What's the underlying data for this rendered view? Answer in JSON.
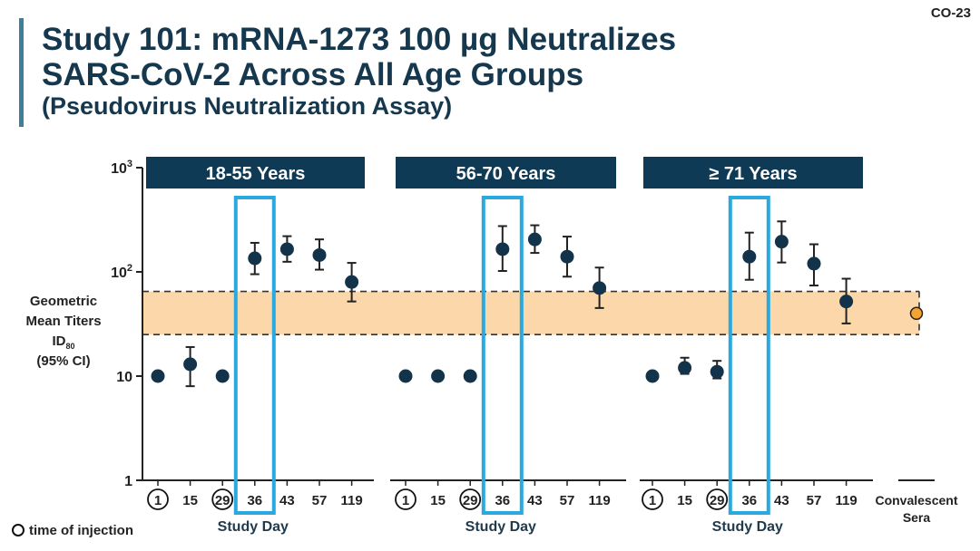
{
  "slide_number": "CO-23",
  "title_line1": "Study 101: mRNA-1273 100 µg Neutralizes",
  "title_line2": "SARS-CoV-2 Across All Age Groups",
  "subtitle": "(Pseudovirus Neutralization Assay)",
  "legend_note": "time of injection",
  "colors": {
    "point": "#12334a",
    "panel_header": "#0e3a55",
    "highlight_box": "#29a9e0",
    "band_fill": "#fbd7a9",
    "convalescent_point": "#f5a433",
    "title": "#16384f"
  },
  "chart_data": {
    "type": "scatter",
    "y_scale": "log",
    "ylim": [
      1,
      1000
    ],
    "ylabel_lines": [
      "Geometric",
      "Mean Titers",
      "ID",
      "(95% CI)"
    ],
    "ylabel_subscript": "80",
    "y_ticks": [
      {
        "value": 1,
        "label": "1"
      },
      {
        "value": 10,
        "label": "10"
      },
      {
        "value": 100,
        "base": "10",
        "exp": "2"
      },
      {
        "value": 1000,
        "base": "10",
        "exp": "3"
      }
    ],
    "xlabel": "Study Day",
    "injection_days": [
      "1",
      "29"
    ],
    "highlight_day": "36",
    "reference_band": {
      "lower": 25,
      "upper": 65
    },
    "panels": [
      {
        "name": "18-55 Years",
        "days": [
          "1",
          "15",
          "29",
          "36",
          "43",
          "57",
          "119"
        ],
        "points": [
          {
            "day": "1",
            "y": 10
          },
          {
            "day": "15",
            "y": 13,
            "lo": 8,
            "hi": 19
          },
          {
            "day": "29",
            "y": 10
          },
          {
            "day": "36",
            "y": 135,
            "lo": 95,
            "hi": 190
          },
          {
            "day": "43",
            "y": 165,
            "lo": 125,
            "hi": 220
          },
          {
            "day": "57",
            "y": 145,
            "lo": 105,
            "hi": 205
          },
          {
            "day": "119",
            "y": 80,
            "lo": 52,
            "hi": 122
          }
        ]
      },
      {
        "name": "56-70 Years",
        "days": [
          "1",
          "15",
          "29",
          "36",
          "43",
          "57",
          "119"
        ],
        "points": [
          {
            "day": "1",
            "y": 10
          },
          {
            "day": "15",
            "y": 10
          },
          {
            "day": "29",
            "y": 10
          },
          {
            "day": "36",
            "y": 165,
            "lo": 102,
            "hi": 275
          },
          {
            "day": "43",
            "y": 205,
            "lo": 152,
            "hi": 280
          },
          {
            "day": "57",
            "y": 140,
            "lo": 90,
            "hi": 218
          },
          {
            "day": "119",
            "y": 70,
            "lo": 45,
            "hi": 110
          }
        ]
      },
      {
        "name": "≥ 71 Years",
        "days": [
          "1",
          "15",
          "29",
          "36",
          "43",
          "57",
          "119"
        ],
        "points": [
          {
            "day": "1",
            "y": 10
          },
          {
            "day": "15",
            "y": 12,
            "lo": 10.5,
            "hi": 15
          },
          {
            "day": "29",
            "y": 11,
            "lo": 9.5,
            "hi": 14
          },
          {
            "day": "36",
            "y": 140,
            "lo": 84,
            "hi": 238
          },
          {
            "day": "43",
            "y": 195,
            "lo": 123,
            "hi": 305
          },
          {
            "day": "57",
            "y": 120,
            "lo": 74,
            "hi": 184
          },
          {
            "day": "119",
            "y": 52,
            "lo": 32,
            "hi": 86
          }
        ]
      }
    ],
    "convalescent": {
      "label_lines": [
        "Convalescent",
        "Sera"
      ],
      "y": 40
    }
  }
}
